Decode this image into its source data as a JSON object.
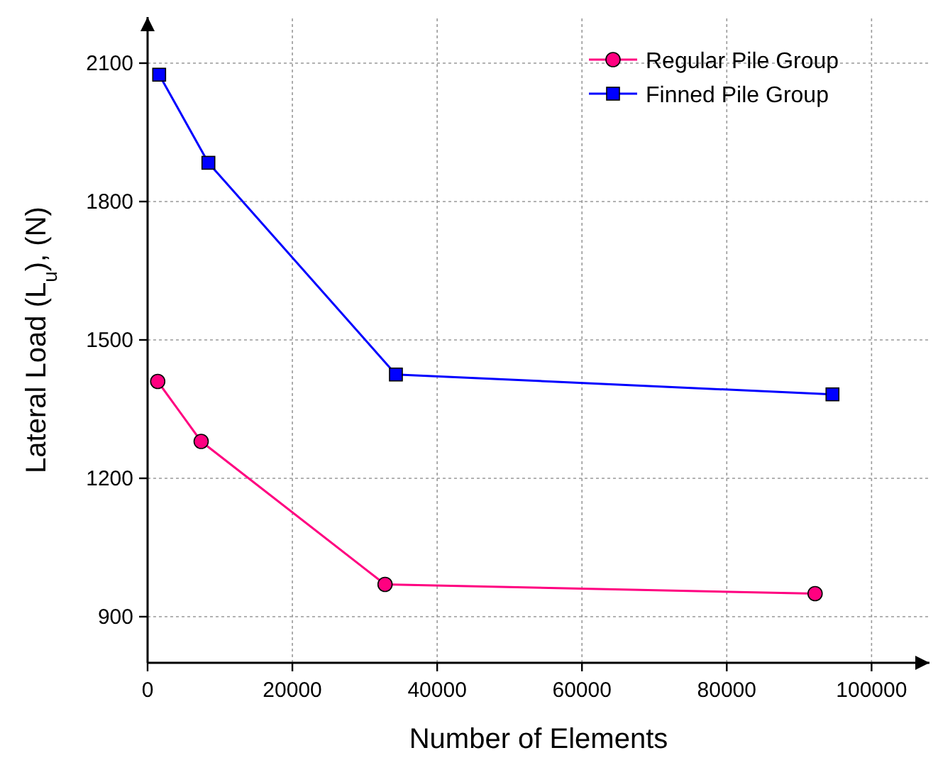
{
  "chart_data": {
    "type": "line",
    "xlabel": "Number of Elements",
    "ylabel": "Lateral Load (L$_{u}$), (N)",
    "xlim": [
      0,
      108000
    ],
    "xticks": [
      0,
      20000,
      40000,
      60000,
      80000,
      100000
    ],
    "ylim": [
      800,
      2200
    ],
    "yticks": [
      900,
      1200,
      1500,
      1800,
      2100
    ],
    "grid": true,
    "legend": "top right",
    "series": [
      {
        "name": "Regular Pile Group",
        "color": "#ff0080",
        "marker": "circle",
        "x": [
          1400,
          7400,
          32800,
          92200
        ],
        "values": [
          1410,
          1280,
          970,
          950
        ]
      },
      {
        "name": "Finned Pile Group",
        "color": "#0000ff",
        "marker": "square",
        "x": [
          1600,
          8400,
          34300,
          94600
        ],
        "values": [
          2075,
          1884,
          1425,
          1382
        ]
      }
    ]
  }
}
